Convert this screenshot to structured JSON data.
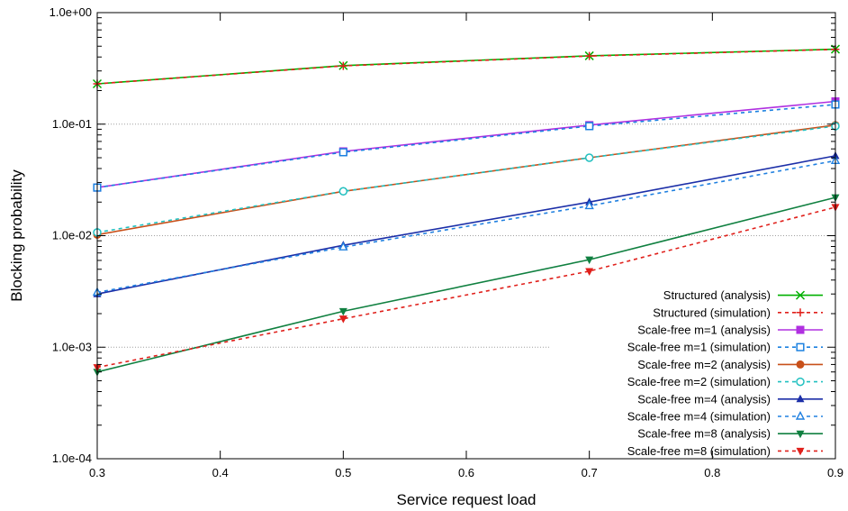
{
  "chart_data": {
    "type": "line",
    "title": "",
    "xlabel": "Service request load",
    "ylabel": "Blocking probability",
    "xlim": [
      0.3,
      0.9
    ],
    "ylim": [
      0.0001,
      1.0
    ],
    "yscale": "log",
    "x_ticks": [
      {
        "value": 0.3,
        "label": "0.3"
      },
      {
        "value": 0.4,
        "label": "0.4"
      },
      {
        "value": 0.5,
        "label": "0.5"
      },
      {
        "value": 0.6,
        "label": "0.6"
      },
      {
        "value": 0.7,
        "label": "0.7"
      },
      {
        "value": 0.8,
        "label": "0.8"
      },
      {
        "value": 0.9,
        "label": "0.9"
      }
    ],
    "y_ticks": [
      {
        "value": 0.0001,
        "label": "1.0e-04"
      },
      {
        "value": 0.001,
        "label": "1.0e-03"
      },
      {
        "value": 0.01,
        "label": "1.0e-02"
      },
      {
        "value": 0.1,
        "label": "1.0e-01"
      },
      {
        "value": 1.0,
        "label": "1.0e+00"
      }
    ],
    "grid": "horizontal dotted at major y ticks",
    "legend_position": "bottom-right",
    "x": [
      0.3,
      0.5,
      0.7,
      0.9
    ],
    "series": [
      {
        "name": "Structured (analysis)",
        "values": [
          0.23,
          0.335,
          0.41,
          0.47
        ],
        "color": "#00b000",
        "dash": "solid",
        "marker": "x"
      },
      {
        "name": "Structured (simulation)",
        "values": [
          0.23,
          0.333,
          0.408,
          0.468
        ],
        "color": "#e0201b",
        "dash": "dashed",
        "marker": "plus"
      },
      {
        "name": "Scale-free m=1 (analysis)",
        "values": [
          0.027,
          0.057,
          0.098,
          0.16
        ],
        "color": "#b030e0",
        "dash": "solid",
        "marker": "square-filled"
      },
      {
        "name": "Scale-free m=1 (simulation)",
        "values": [
          0.027,
          0.056,
          0.096,
          0.15
        ],
        "color": "#1a80e0",
        "dash": "dashed",
        "marker": "square-open"
      },
      {
        "name": "Scale-free m=2 (analysis)",
        "values": [
          0.0102,
          0.025,
          0.05,
          0.098
        ],
        "color": "#c8501a",
        "dash": "solid",
        "marker": "circle-filled"
      },
      {
        "name": "Scale-free m=2 (simulation)",
        "values": [
          0.0107,
          0.025,
          0.05,
          0.096
        ],
        "color": "#20c0c0",
        "dash": "dashed",
        "marker": "circle-open"
      },
      {
        "name": "Scale-free m=4 (analysis)",
        "values": [
          0.003,
          0.0082,
          0.02,
          0.052
        ],
        "color": "#1c2fa8",
        "dash": "solid",
        "marker": "triangle-up-filled"
      },
      {
        "name": "Scale-free m=4 (simulation)",
        "values": [
          0.0031,
          0.0079,
          0.0185,
          0.047
        ],
        "color": "#2080e0",
        "dash": "dashed",
        "marker": "triangle-up-open"
      },
      {
        "name": "Scale-free m=8 (analysis)",
        "values": [
          0.0006,
          0.0021,
          0.0061,
          0.022
        ],
        "color": "#108040",
        "dash": "solid",
        "marker": "triangle-down-filled"
      },
      {
        "name": "Scale-free m=8 (simulation)",
        "values": [
          0.00066,
          0.0018,
          0.0048,
          0.018
        ],
        "color": "#e0201b",
        "dash": "dashed",
        "marker": "triangle-down-filled"
      }
    ]
  }
}
